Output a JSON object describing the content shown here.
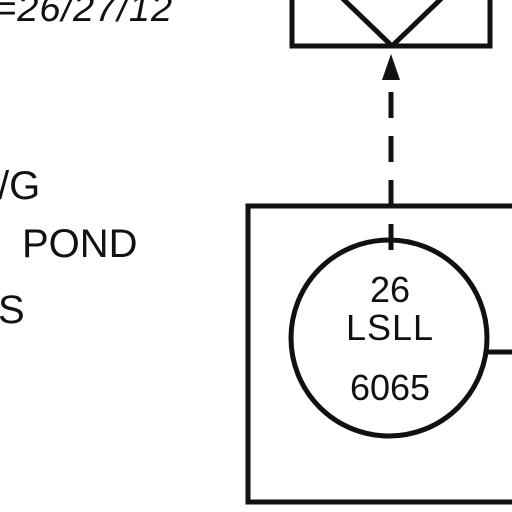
{
  "diagram": {
    "top_label": "=26/27/12",
    "left_labels": {
      "line1": "/G",
      "line2": "POND",
      "line3": "S"
    },
    "instrument": {
      "number": "26",
      "tag": "LSLL",
      "loop": "6065"
    }
  },
  "colors": {
    "ink": "#111111",
    "background": "#ffffff"
  }
}
